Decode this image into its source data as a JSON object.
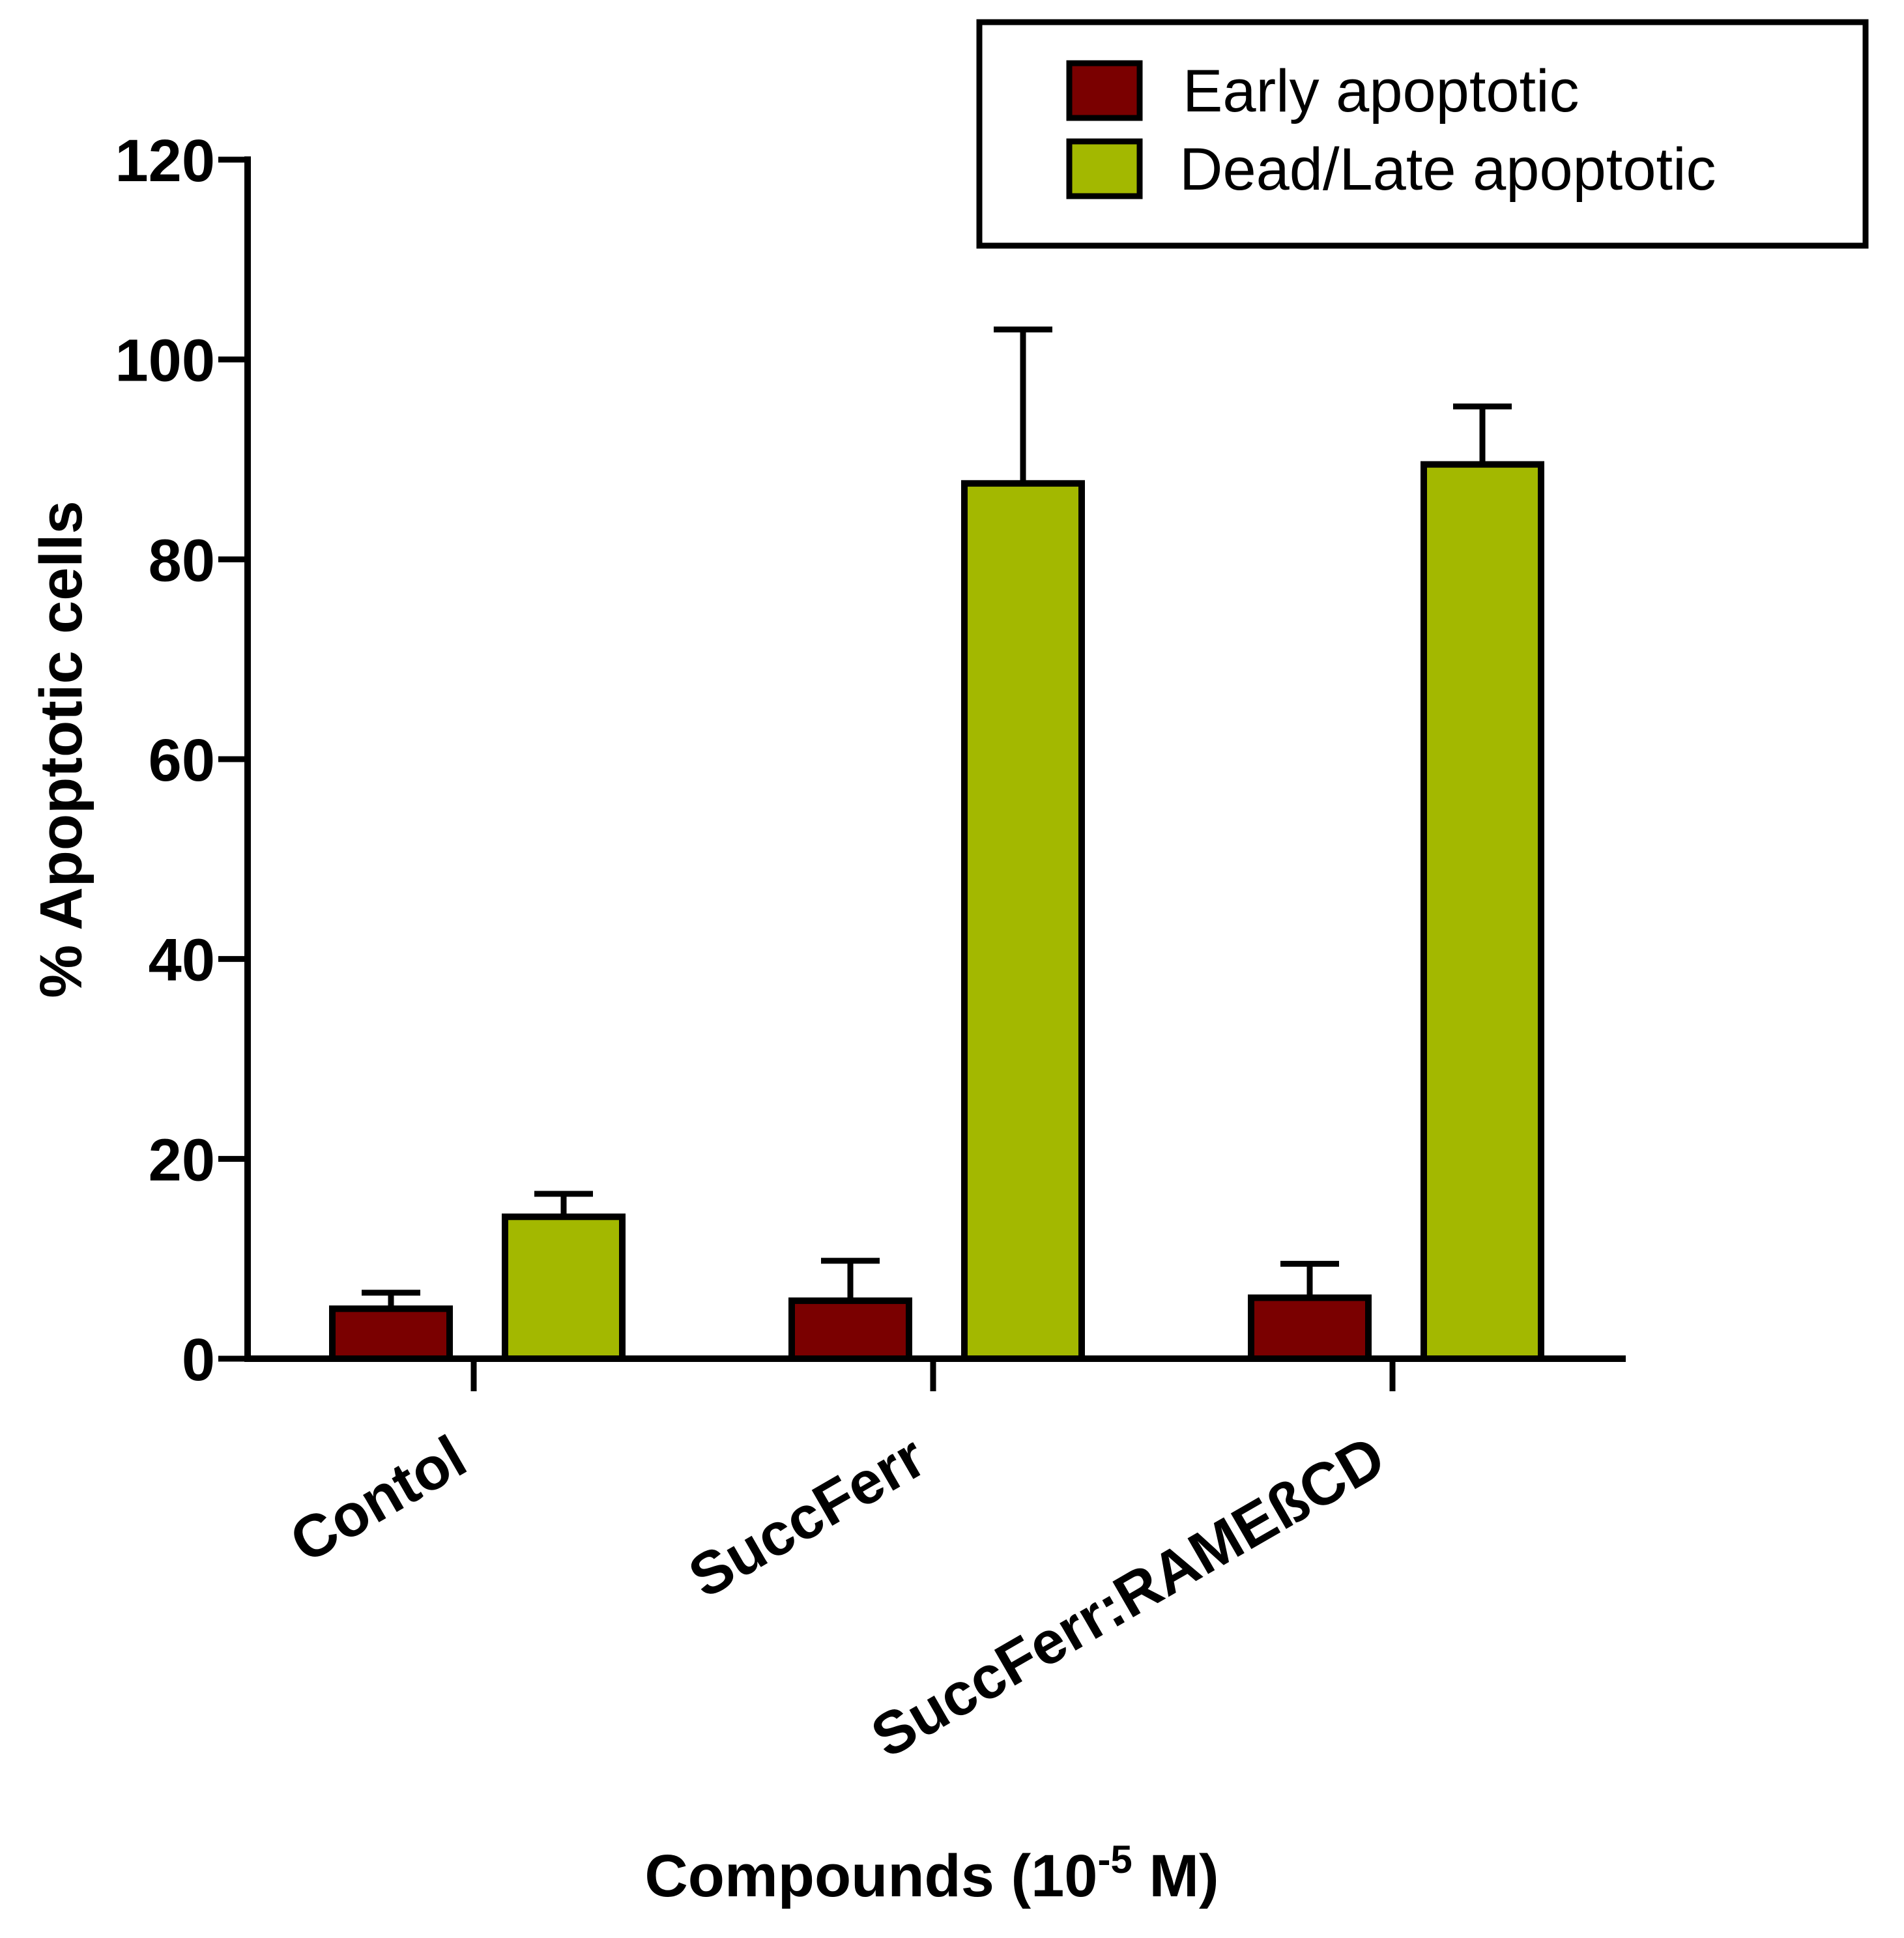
{
  "chart_data": {
    "type": "bar",
    "title": "",
    "xlabel_main": "Compounds (10",
    "xlabel_sup": "-5",
    "xlabel_tail": " M)",
    "ylabel": "% Apoptotic cells",
    "ylim": [
      0,
      120
    ],
    "yticks": [
      0,
      20,
      40,
      60,
      80,
      100,
      120
    ],
    "ytick_labels": [
      "0",
      "20",
      "40",
      "60",
      "80",
      "100",
      "120"
    ],
    "categories": [
      "Contol",
      "SuccFerr",
      "SuccFerr:RAMEßCD"
    ],
    "series": [
      {
        "name": "Early apoptotic",
        "color": "#7a0000",
        "values": [
          5,
          5.8,
          6.1
        ],
        "errors": [
          1.6,
          4.0,
          3.4
        ]
      },
      {
        "name": "Dead/Late apoptotic",
        "color": "#a3b800",
        "values": [
          14.2,
          87.6,
          89.5
        ],
        "errors": [
          2.3,
          15.4,
          5.8
        ]
      }
    ],
    "legend_position": "top-right",
    "grid": false
  }
}
